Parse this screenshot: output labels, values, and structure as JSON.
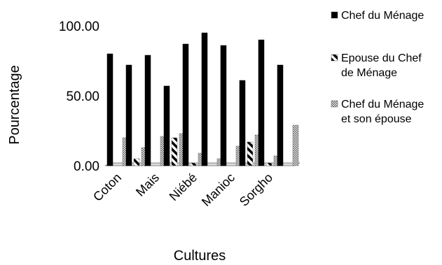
{
  "chart_data": {
    "type": "bar",
    "title": "",
    "xlabel": "Cultures",
    "ylabel": "Pourcentage",
    "ylim": [
      0,
      100
    ],
    "yticks": [
      "0.00",
      "50.00",
      "100.00"
    ],
    "categories": [
      "Coton",
      "",
      "Mais",
      "",
      "Niébé",
      "",
      "Manioc",
      "",
      "Sorgho",
      ""
    ],
    "series": [
      {
        "name": "Chef du Ménage",
        "pattern": "solid",
        "values": [
          80,
          72,
          79,
          57,
          87,
          95,
          86,
          61,
          90,
          72
        ]
      },
      {
        "name": "Epouse du Chef de Ménage",
        "pattern": "dashed-diagonal",
        "values": [
          0,
          5,
          0,
          20,
          2,
          0,
          0,
          17,
          2,
          0
        ]
      },
      {
        "name": "Chef du Ménage et son épouse",
        "pattern": "checker",
        "values": [
          20,
          13,
          21,
          23,
          9,
          5,
          14,
          22,
          7,
          29
        ]
      }
    ],
    "legend_position": "right",
    "grid": false
  }
}
